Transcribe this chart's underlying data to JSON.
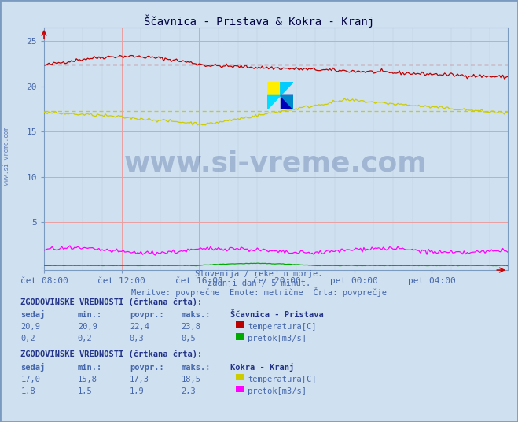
{
  "title": "Ščavnica - Pristava & Kokra - Kranj",
  "subtitle1": "Slovenija / reke in morje.",
  "subtitle2": "zadnji dan / 5 minut.",
  "subtitle3": "Meritve: povprečne  Enote: metrične  Črta: povprečje",
  "watermark": "www.si-vreme.com",
  "xlabel_ticks": [
    "čet 08:00",
    "čet 12:00",
    "čet 16:00",
    "čet 20:00",
    "pet 00:00",
    "pet 04:00"
  ],
  "ylabel_ticks": [
    0,
    5,
    10,
    15,
    20,
    25
  ],
  "ylim": [
    -0.3,
    26.5
  ],
  "xlim": [
    0,
    287
  ],
  "n_points": 288,
  "background_color": "#cfe0f0",
  "plot_bg_color": "#cfe0f0",
  "scavnica_temp_color": "#bb0000",
  "scavnica_pretok_color": "#00aa00",
  "kokra_temp_color": "#cccc00",
  "kokra_pretok_color": "#ff00ff",
  "legend_section1": "Ščavnica - Pristava",
  "legend_section2": "Kokra - Kranj",
  "stat_header": "ZGODOVINSKE VREDNOSTI (črtkana črta):",
  "stat_cols": [
    "sedaj",
    "min.:",
    "povpr.:",
    "maks.:"
  ],
  "scav_temp_vals": [
    20.9,
    20.9,
    22.4,
    23.8
  ],
  "scav_pretok_vals": [
    0.2,
    0.2,
    0.3,
    0.5
  ],
  "kokra_temp_vals": [
    17.0,
    15.8,
    17.3,
    18.5
  ],
  "kokra_pretok_vals": [
    1.8,
    1.5,
    1.9,
    2.3
  ],
  "scav_temp_label": "temperatura[C]",
  "scav_pretok_label": "pretok[m3/s]",
  "kokra_temp_label": "temperatura[C]",
  "kokra_pretok_label": "pretok[m3/s]",
  "scav_temp_avg": 22.4,
  "kokra_temp_avg": 17.3,
  "border_color": "#7a9abf"
}
